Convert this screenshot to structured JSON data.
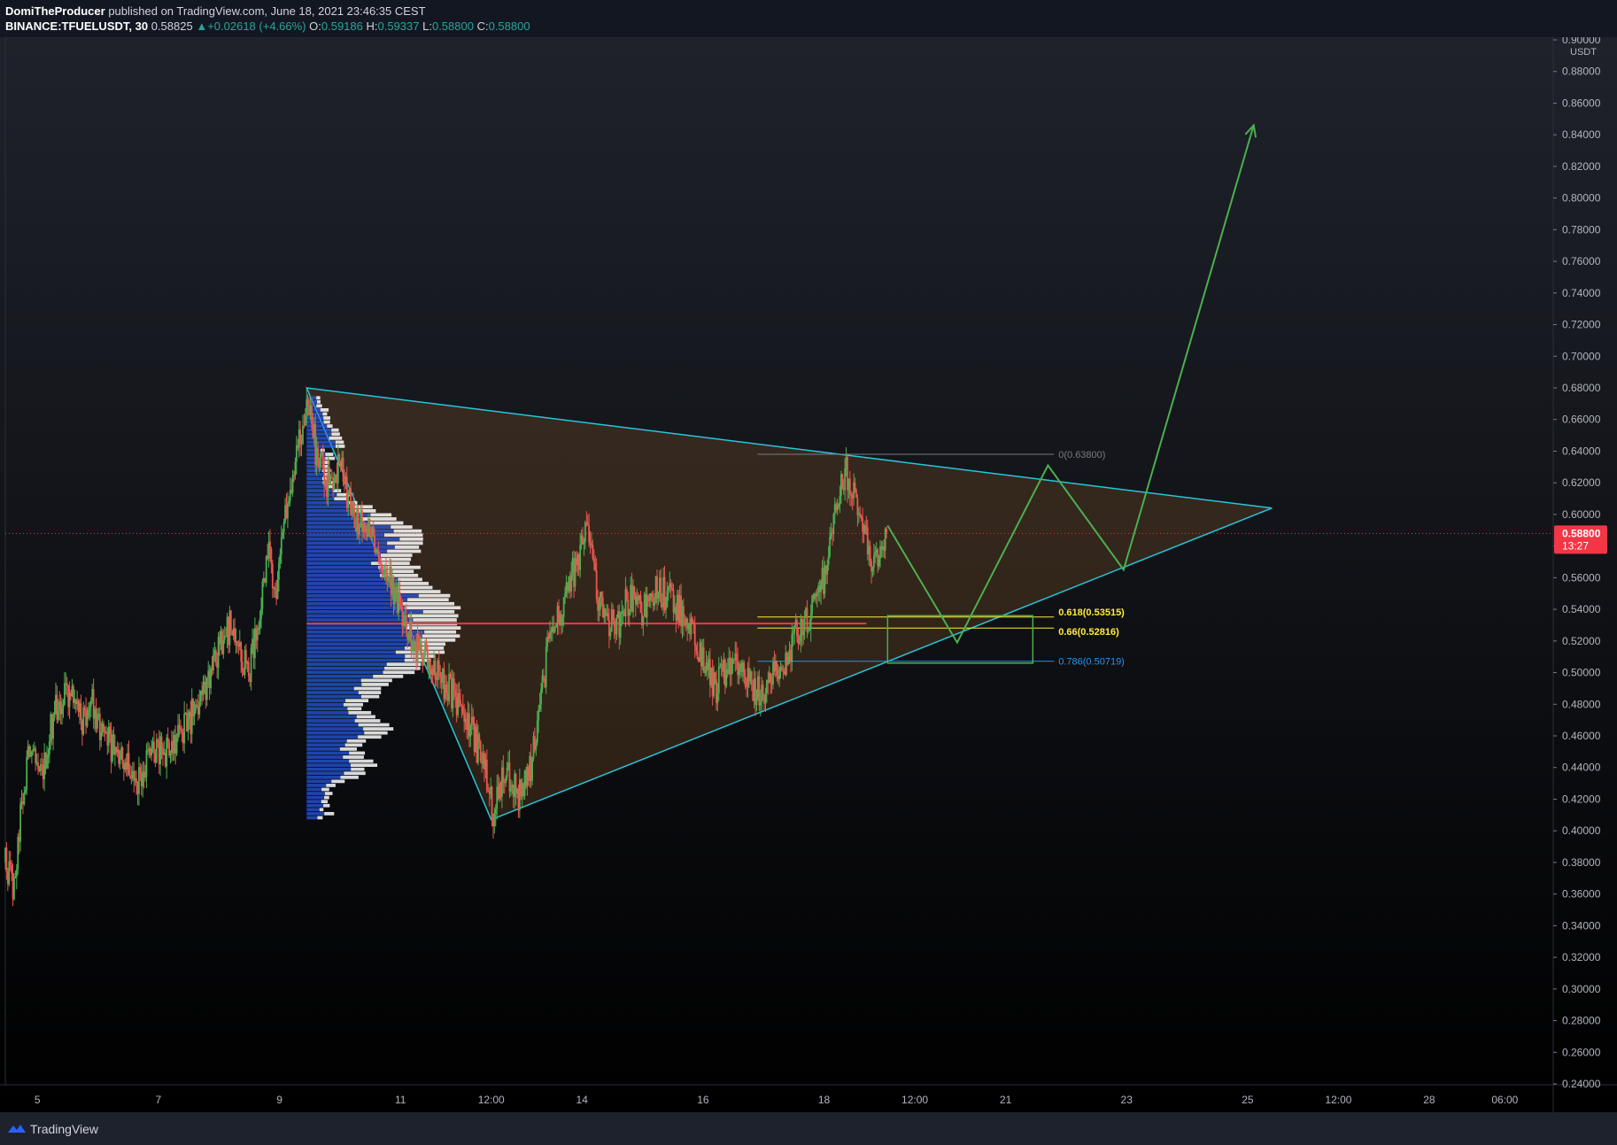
{
  "header": {
    "author": "DomiTheProducer",
    "published_text": "published on TradingView.com, June 18, 2021 23:46:35 CEST",
    "symbol": "BINANCE:TFUELUSDT, 30",
    "last": "0.58825",
    "change": "+0.02618 (+4.66%)",
    "o_label": "O:",
    "o_value": "0.59186",
    "h_label": "H:",
    "h_value": "0.59337",
    "l_label": "L:",
    "l_value": "0.58800",
    "c_label": "C:",
    "c_value": "0.58800"
  },
  "footer": {
    "brand": "TradingView"
  },
  "icons": {
    "brand": "tradingview-logo-icon",
    "change": "triangle-up-icon"
  },
  "colors": {
    "up": "#26a69a",
    "down": "#ef5350",
    "candle_up": "#4caf50",
    "candle_down": "#ef5350",
    "triangle": "#26c6da",
    "triangle_fill": "#8d5a28",
    "projection": "#4caf50",
    "poc": "#f23645",
    "vp_blue": "#2962ff",
    "vp_white": "#ffffff",
    "fib_gray": "#787b86",
    "fib_yellow": "#ffeb3b",
    "fib_blue": "#2196f3",
    "price_tag": "#f23645"
  },
  "chart_data": {
    "type": "candlestick",
    "symbol": "BINANCE:TFUELUSDT",
    "interval": "30",
    "currency": "USDT",
    "ylim": [
      0.24,
      0.9
    ],
    "y_ticks": [
      "0.24000",
      "0.26000",
      "0.28000",
      "0.30000",
      "0.32000",
      "0.34000",
      "0.36000",
      "0.38000",
      "0.40000",
      "0.42000",
      "0.44000",
      "0.46000",
      "0.48000",
      "0.50000",
      "0.52000",
      "0.54000",
      "0.56000",
      "0.58000",
      "0.60000",
      "0.62000",
      "0.64000",
      "0.66000",
      "0.68000",
      "0.70000",
      "0.72000",
      "0.74000",
      "0.76000",
      "0.78000",
      "0.80000",
      "0.82000",
      "0.84000",
      "0.86000",
      "0.88000",
      "0.90000"
    ],
    "x_ticks": [
      {
        "label": "5",
        "day": 5.0
      },
      {
        "label": "7",
        "day": 7.0
      },
      {
        "label": "9",
        "day": 9.0
      },
      {
        "label": "11",
        "day": 11.0
      },
      {
        "label": "12:00",
        "day": 12.5
      },
      {
        "label": "14",
        "day": 14.0
      },
      {
        "label": "16",
        "day": 16.0
      },
      {
        "label": "18",
        "day": 18.0
      },
      {
        "label": "12:00",
        "day": 19.5
      },
      {
        "label": "21",
        "day": 21.0
      },
      {
        "label": "23",
        "day": 23.0
      },
      {
        "label": "25",
        "day": 25.0
      },
      {
        "label": "12:00",
        "day": 26.5
      },
      {
        "label": "28",
        "day": 28.0
      },
      {
        "label": "06:00",
        "day": 29.25
      }
    ],
    "xlim": [
      4.47,
      30.05
    ],
    "current_price": "0.58800",
    "countdown": "13:27",
    "price_path": [
      [
        4.47,
        0.38
      ],
      [
        4.6,
        0.36
      ],
      [
        4.75,
        0.42
      ],
      [
        4.9,
        0.46
      ],
      [
        5.1,
        0.44
      ],
      [
        5.3,
        0.48
      ],
      [
        5.5,
        0.49
      ],
      [
        5.7,
        0.47
      ],
      [
        5.9,
        0.48
      ],
      [
        6.1,
        0.46
      ],
      [
        6.3,
        0.45
      ],
      [
        6.5,
        0.44
      ],
      [
        6.7,
        0.43
      ],
      [
        6.9,
        0.45
      ],
      [
        7.1,
        0.45
      ],
      [
        7.3,
        0.46
      ],
      [
        7.5,
        0.47
      ],
      [
        7.7,
        0.48
      ],
      [
        7.9,
        0.5
      ],
      [
        8.05,
        0.52
      ],
      [
        8.2,
        0.53
      ],
      [
        8.35,
        0.51
      ],
      [
        8.5,
        0.5
      ],
      [
        8.65,
        0.53
      ],
      [
        8.8,
        0.58
      ],
      [
        8.95,
        0.55
      ],
      [
        9.1,
        0.6
      ],
      [
        9.25,
        0.63
      ],
      [
        9.4,
        0.66
      ],
      [
        9.5,
        0.67
      ],
      [
        9.6,
        0.64
      ],
      [
        9.8,
        0.62
      ],
      [
        10.0,
        0.63
      ],
      [
        10.2,
        0.6
      ],
      [
        10.4,
        0.59
      ],
      [
        10.6,
        0.58
      ],
      [
        10.8,
        0.56
      ],
      [
        11.0,
        0.54
      ],
      [
        11.2,
        0.52
      ],
      [
        11.4,
        0.51
      ],
      [
        11.6,
        0.5
      ],
      [
        11.8,
        0.49
      ],
      [
        12.0,
        0.48
      ],
      [
        12.2,
        0.46
      ],
      [
        12.4,
        0.44
      ],
      [
        12.55,
        0.41
      ],
      [
        12.7,
        0.44
      ],
      [
        12.85,
        0.43
      ],
      [
        13.0,
        0.42
      ],
      [
        13.15,
        0.44
      ],
      [
        13.3,
        0.48
      ],
      [
        13.5,
        0.53
      ],
      [
        13.7,
        0.54
      ],
      [
        13.9,
        0.57
      ],
      [
        14.1,
        0.59
      ],
      [
        14.25,
        0.55
      ],
      [
        14.4,
        0.53
      ],
      [
        14.6,
        0.53
      ],
      [
        14.8,
        0.55
      ],
      [
        15.0,
        0.54
      ],
      [
        15.2,
        0.55
      ],
      [
        15.4,
        0.55
      ],
      [
        15.6,
        0.54
      ],
      [
        15.8,
        0.53
      ],
      [
        16.0,
        0.51
      ],
      [
        16.2,
        0.49
      ],
      [
        16.4,
        0.5
      ],
      [
        16.6,
        0.51
      ],
      [
        16.8,
        0.49
      ],
      [
        17.0,
        0.49
      ],
      [
        17.2,
        0.5
      ],
      [
        17.4,
        0.51
      ],
      [
        17.6,
        0.53
      ],
      [
        17.8,
        0.54
      ],
      [
        18.0,
        0.56
      ],
      [
        18.2,
        0.6
      ],
      [
        18.35,
        0.63
      ],
      [
        18.5,
        0.61
      ],
      [
        18.65,
        0.59
      ],
      [
        18.8,
        0.57
      ],
      [
        18.95,
        0.58
      ],
      [
        19.05,
        0.588
      ]
    ],
    "triangle": [
      [
        9.45,
        0.68
      ],
      [
        12.5,
        0.407
      ],
      [
        25.4,
        0.604
      ]
    ],
    "projection": [
      [
        19.05,
        0.593
      ],
      [
        20.2,
        0.519
      ],
      [
        21.7,
        0.631
      ],
      [
        22.95,
        0.565
      ],
      [
        25.1,
        0.846
      ]
    ],
    "target_box": {
      "x": [
        19.05,
        21.45
      ],
      "y": [
        0.506,
        0.536
      ]
    },
    "poc_line": {
      "x": [
        9.45,
        18.7
      ],
      "y": 0.531
    },
    "volume_profile": {
      "x_start": 9.45,
      "y_range": [
        0.407,
        0.675
      ],
      "poc": 0.531
    },
    "fib_levels": [
      {
        "label": "0(0.63800)",
        "value": 0.638,
        "x": [
          16.9,
          21.8
        ]
      },
      {
        "label": "0.618(0.53515)",
        "value": 0.53515,
        "x": [
          16.9,
          21.8
        ]
      },
      {
        "label": "0.66(0.52816)",
        "value": 0.52816,
        "x": [
          16.9,
          21.8
        ]
      },
      {
        "label": "0.786(0.50719)",
        "value": 0.50719,
        "x": [
          16.9,
          21.8
        ]
      }
    ]
  }
}
